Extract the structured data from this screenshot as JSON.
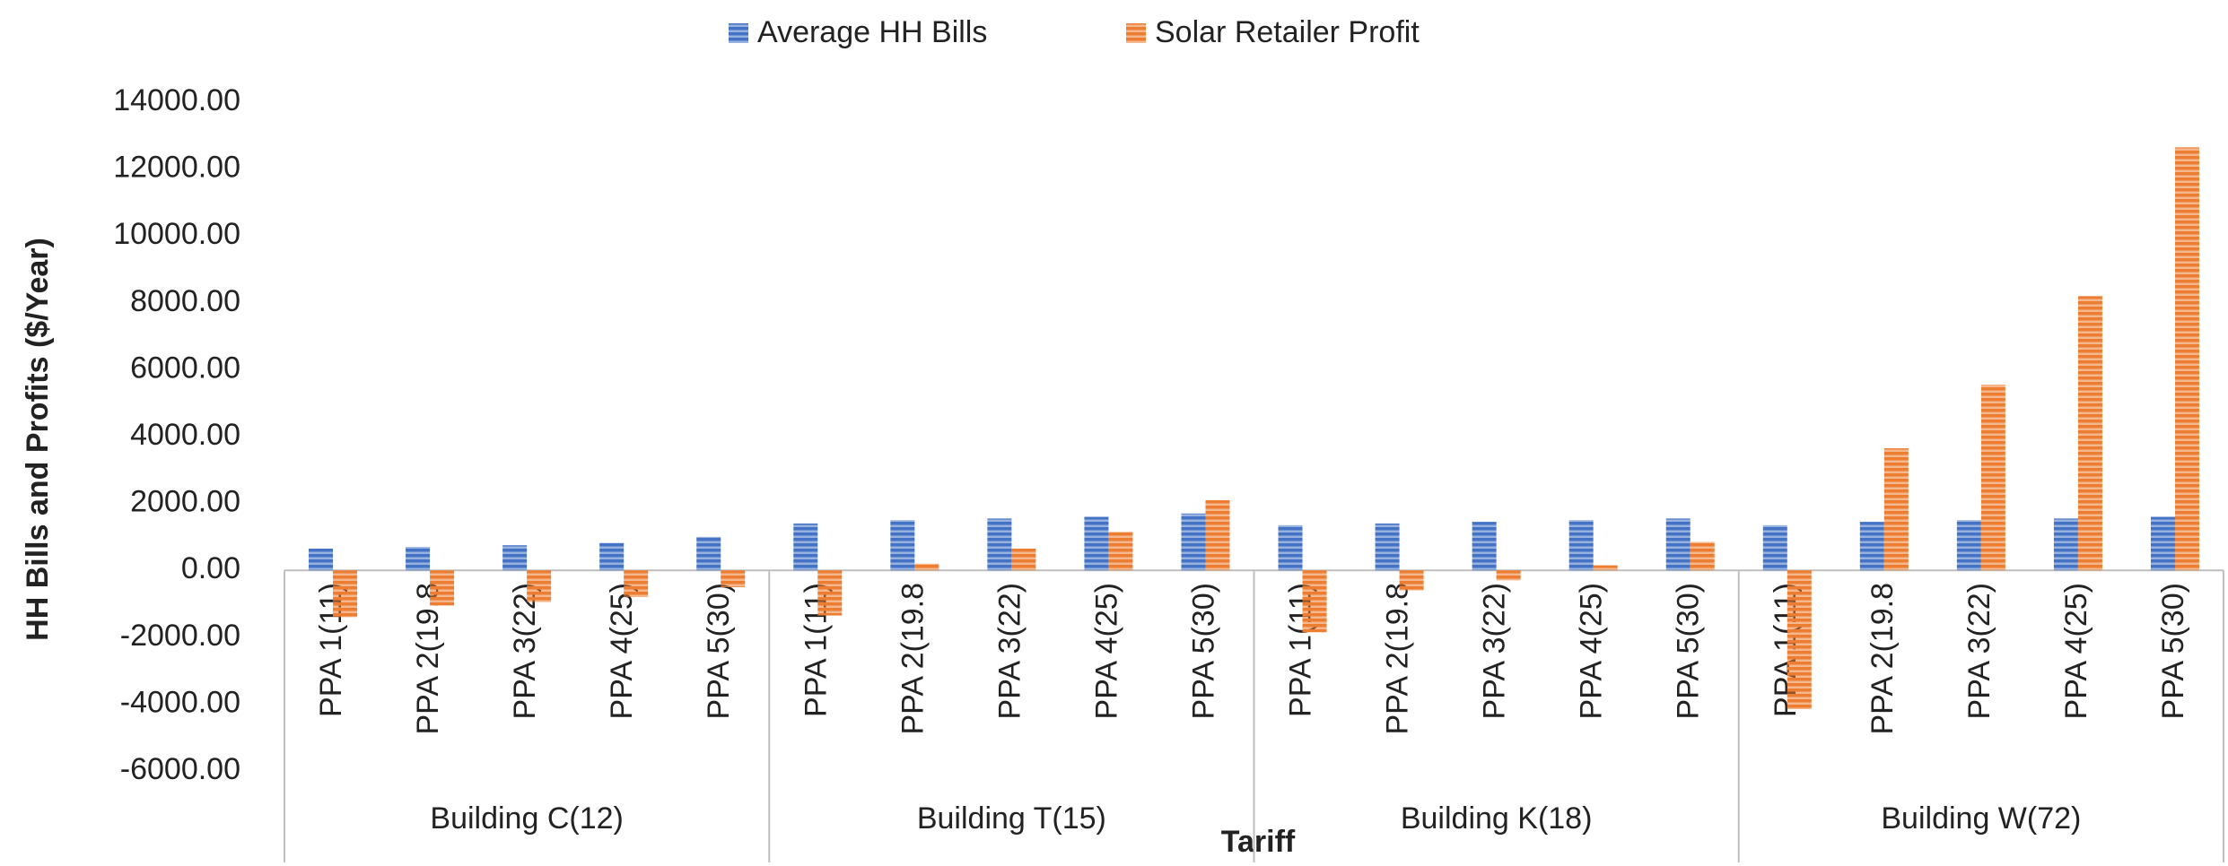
{
  "chart_data": {
    "type": "bar",
    "y_axis_label": "HH Bills and Profits ($/Year)",
    "x_axis_label": "Tariff",
    "groups": [
      "Building C(12)",
      "Building T(15)",
      "Building K(18)",
      "Building W(72)"
    ],
    "categories": [
      "PPA 1(11)",
      "PPA 2(19.8",
      "PPA 3(22)",
      "PPA 4(25)",
      "PPA 5(30)",
      "PPA 1(11)",
      "PPA 2(19.8",
      "PPA 3(22)",
      "PPA 4(25)",
      "PPA 5(30)",
      "PPA 1(11)",
      "PPA 2(19.8",
      "PPA 3(22)",
      "PPA 4(25)",
      "PPA 5(30)",
      "PPA 1(11)",
      "PPA 2(19.8",
      "PPA 3(22)",
      "PPA 4(25)",
      "PPA 5(30)"
    ],
    "series": [
      {
        "name": "Average HH Bills",
        "color": "#4472c4",
        "values": [
          650,
          700,
          750,
          820,
          1000,
          1400,
          1500,
          1550,
          1600,
          1700,
          1350,
          1400,
          1450,
          1500,
          1550,
          1350,
          1450,
          1500,
          1550,
          1600
        ]
      },
      {
        "name": "Solar Retailer Profit",
        "color": "#ed7d31",
        "values": [
          -1400,
          -1050,
          -950,
          -800,
          -500,
          -1350,
          200,
          650,
          1150,
          2100,
          -1850,
          -600,
          -300,
          150,
          850,
          -4150,
          3650,
          5550,
          8200,
          12650
        ]
      }
    ],
    "ylim": [
      -6000,
      14000
    ],
    "yticks": [
      {
        "value": -6000,
        "label": "-6000.00"
      },
      {
        "value": -4000,
        "label": "-4000.00"
      },
      {
        "value": -2000,
        "label": "-2000.00"
      },
      {
        "value": 0,
        "label": "0.00"
      },
      {
        "value": 2000,
        "label": "2000.00"
      },
      {
        "value": 4000,
        "label": "4000.00"
      },
      {
        "value": 6000,
        "label": "6000.00"
      },
      {
        "value": 8000,
        "label": "8000.00"
      },
      {
        "value": 10000,
        "label": "10000.00"
      },
      {
        "value": 12000,
        "label": "12000.00"
      },
      {
        "value": 14000,
        "label": "14000.00"
      }
    ],
    "legend": "top",
    "grid": false
  }
}
